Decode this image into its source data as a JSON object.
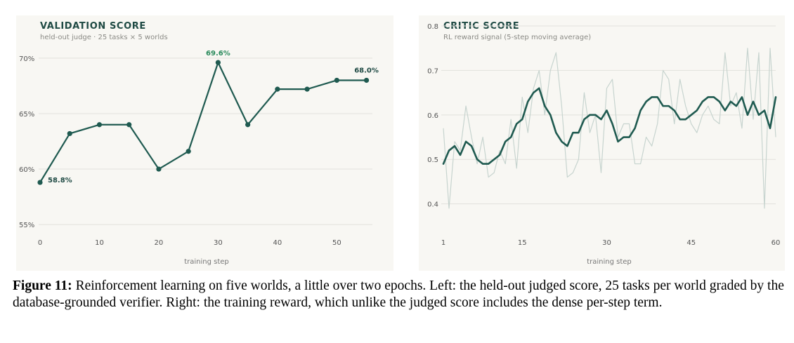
{
  "chart_data": [
    {
      "type": "line",
      "title": "VALIDATION SCORE",
      "subtitle": "held-out judge · 25 tasks × 5 worlds",
      "xlabel": "training step",
      "ylabel": "",
      "x": [
        0,
        5,
        10,
        15,
        20,
        25,
        30,
        35,
        40,
        45,
        50,
        55
      ],
      "series": [
        {
          "values": [
            58.8,
            63.2,
            64.0,
            64.0,
            60.0,
            61.6,
            69.6,
            64.0,
            67.2,
            67.2,
            68.0,
            68.0
          ]
        }
      ],
      "ylim": [
        54,
        71
      ],
      "xlim": [
        0,
        56
      ],
      "yticks": [
        55,
        60,
        65,
        70
      ],
      "ytick_labels": [
        "55%",
        "60%",
        "65%",
        "70%"
      ],
      "xticks": [
        0,
        10,
        20,
        30,
        40,
        50
      ],
      "xtick_labels": [
        "0",
        "10",
        "20",
        "30",
        "40",
        "50"
      ],
      "annotations": [
        {
          "x": 0,
          "y": 58.8,
          "text": "58.8%"
        },
        {
          "x": 30,
          "y": 69.6,
          "text": "69.6%"
        },
        {
          "x": 55,
          "y": 68.0,
          "text": "68.0%"
        }
      ],
      "grid": true,
      "colors": {
        "line": "#1f5a50",
        "peak_label": "#2a8a5c",
        "grid": "#e2e1dc"
      }
    },
    {
      "type": "line",
      "title": "CRITIC SCORE",
      "subtitle": "RL reward signal (5-step moving average)",
      "xlabel": "training step",
      "ylabel": "",
      "x_raw_start": 1,
      "raw": [
        0.57,
        0.39,
        0.54,
        0.52,
        0.62,
        0.55,
        0.49,
        0.55,
        0.46,
        0.47,
        0.52,
        0.49,
        0.59,
        0.48,
        0.64,
        0.56,
        0.66,
        0.7,
        0.6,
        0.7,
        0.74,
        0.62,
        0.46,
        0.47,
        0.5,
        0.65,
        0.56,
        0.6,
        0.47,
        0.66,
        0.68,
        0.55,
        0.58,
        0.58,
        0.49,
        0.49,
        0.55,
        0.53,
        0.58,
        0.7,
        0.68,
        0.58,
        0.68,
        0.62,
        0.58,
        0.56,
        0.6,
        0.62,
        0.59,
        0.58,
        0.74,
        0.62,
        0.65,
        0.57,
        0.75,
        0.59,
        0.74,
        0.39,
        0.75,
        0.55
      ],
      "smooth": [
        0.49,
        0.52,
        0.53,
        0.51,
        0.54,
        0.53,
        0.5,
        0.49,
        0.49,
        0.5,
        0.51,
        0.54,
        0.55,
        0.58,
        0.59,
        0.63,
        0.65,
        0.66,
        0.62,
        0.6,
        0.56,
        0.54,
        0.53,
        0.56,
        0.56,
        0.59,
        0.6,
        0.6,
        0.59,
        0.61,
        0.58,
        0.54,
        0.55,
        0.55,
        0.57,
        0.61,
        0.63,
        0.64,
        0.64,
        0.62,
        0.62,
        0.61,
        0.59,
        0.59,
        0.6,
        0.61,
        0.63,
        0.64,
        0.64,
        0.63,
        0.61,
        0.63,
        0.62,
        0.64,
        0.6,
        0.63,
        0.6,
        0.61,
        0.57,
        0.64
      ],
      "ylim": [
        0.36,
        0.8
      ],
      "xlim": [
        1,
        60
      ],
      "yticks": [
        0.4,
        0.5,
        0.6,
        0.7,
        0.8
      ],
      "ytick_labels": [
        "0.4",
        "0.5",
        "0.6",
        "0.7",
        "0.8"
      ],
      "xticks": [
        1,
        15,
        30,
        45,
        60
      ],
      "xtick_labels": [
        "1",
        "15",
        "30",
        "45",
        "60"
      ],
      "grid": true,
      "colors": {
        "smooth": "#1f5a50",
        "raw": "#c7d4cf",
        "grid": "#e2e1dc"
      }
    }
  ],
  "caption": {
    "label": "Figure 11:",
    "text": " Reinforcement learning on five worlds, a little over two epochs. Left: the held-out judged score, 25 tasks per world graded by the database-grounded verifier. Right: the training reward, which unlike the judged score includes the dense per-step term."
  }
}
